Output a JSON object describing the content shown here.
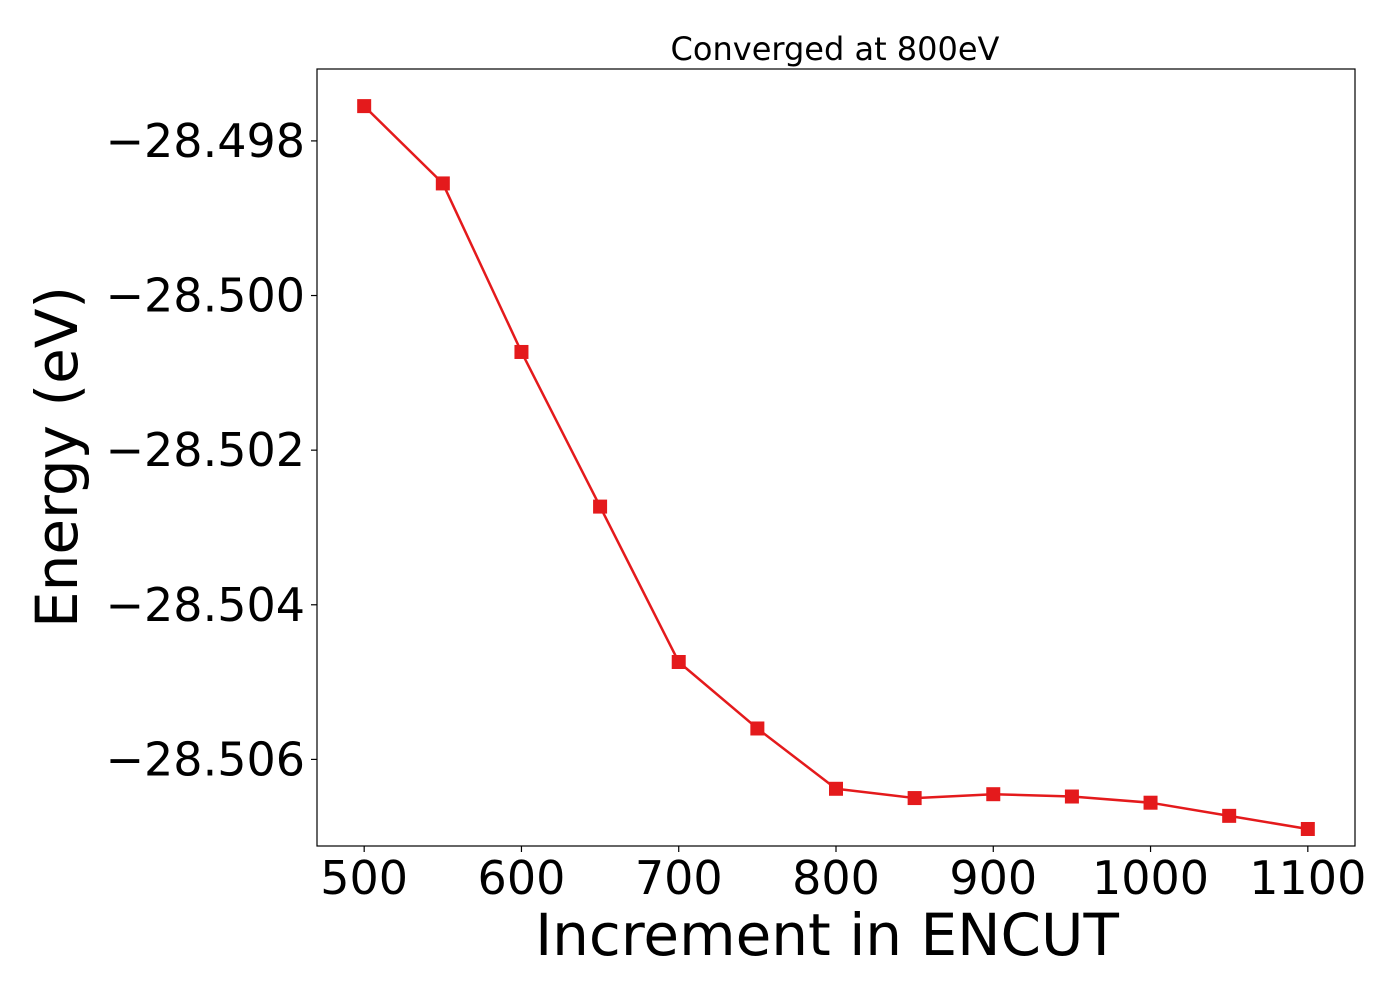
{
  "chart_data": {
    "type": "line",
    "title": "Converged at 800eV",
    "xlabel": "Increment in ENCUT",
    "ylabel": "Energy (eV)",
    "x": [
      500,
      550,
      600,
      650,
      700,
      750,
      800,
      850,
      900,
      950,
      1000,
      1050,
      1100
    ],
    "series": [
      {
        "values": [
          -28.49755,
          -28.49855,
          -28.50073,
          -28.50273,
          -28.50474,
          -28.5056,
          -28.50638,
          -28.5065,
          -28.50645,
          -28.50648,
          -28.50656,
          -28.50673,
          -28.5069
        ],
        "color": "#e41a1c",
        "marker": "square"
      }
    ],
    "xlim": [
      470,
      1130
    ],
    "ylim": [
      -28.50712,
      -28.49707
    ],
    "xticks": [
      500,
      600,
      700,
      800,
      900,
      1000,
      1100
    ],
    "xtick_labels": [
      "500",
      "600",
      "700",
      "800",
      "900",
      "1000",
      "1100"
    ],
    "yticks": [
      -28.498,
      -28.5,
      -28.502,
      -28.504,
      -28.506
    ],
    "ytick_labels": [
      "−28.498",
      "−28.500",
      "−28.502",
      "−28.504",
      "−28.506"
    ],
    "grid": false,
    "legend": "none"
  }
}
